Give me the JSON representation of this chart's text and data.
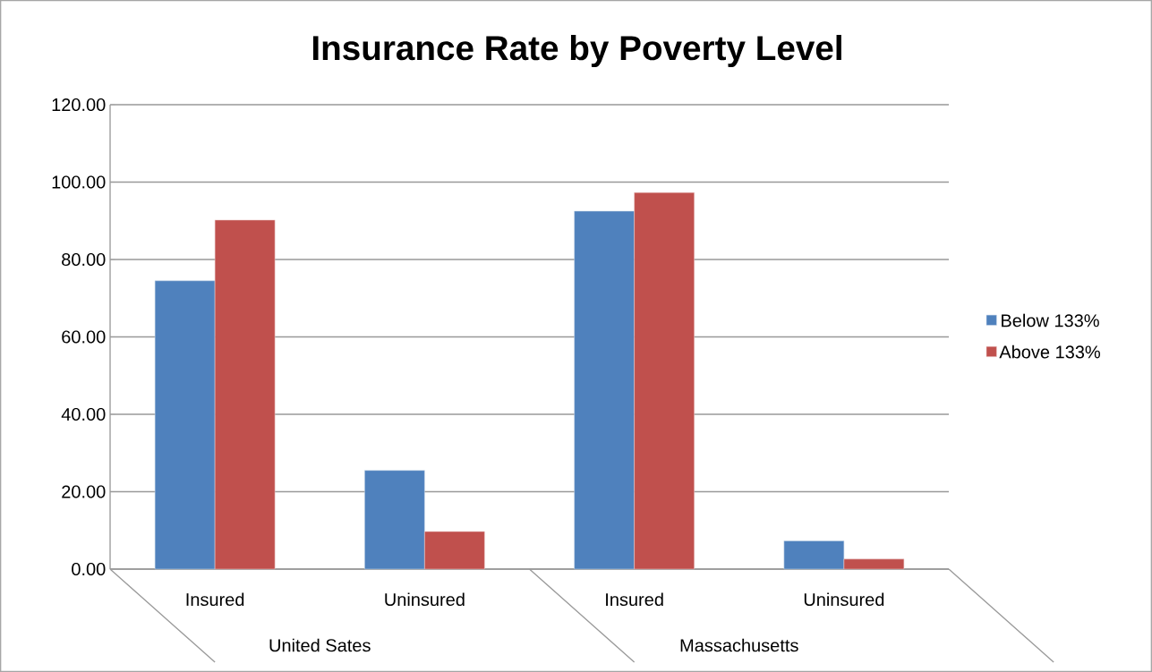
{
  "chart_data": {
    "type": "bar",
    "title": "Insurance Rate by Poverty Level",
    "categories": [
      "Insured",
      "Uninsured",
      "Insured",
      "Uninsured"
    ],
    "series": [
      {
        "name": "Below 133%",
        "color": "#4f81bd",
        "values": [
          74.5,
          25.5,
          92.5,
          7.3
        ]
      },
      {
        "name": "Above 133%",
        "color": "#c0504d",
        "values": [
          90.2,
          9.7,
          97.3,
          2.6
        ]
      }
    ],
    "ylim": [
      0,
      120
    ],
    "yticks": [
      {
        "value": 0,
        "label": "0.00"
      },
      {
        "value": 20,
        "label": "20.00"
      },
      {
        "value": 40,
        "label": "40.00"
      },
      {
        "value": 60,
        "label": "60.00"
      },
      {
        "value": 80,
        "label": "80.00"
      },
      {
        "value": 100,
        "label": "100.00"
      },
      {
        "value": 120,
        "label": "120.00"
      }
    ],
    "grid": "y",
    "legend": "right",
    "annotations": [
      "United Sates",
      "Massachusetts"
    ]
  }
}
